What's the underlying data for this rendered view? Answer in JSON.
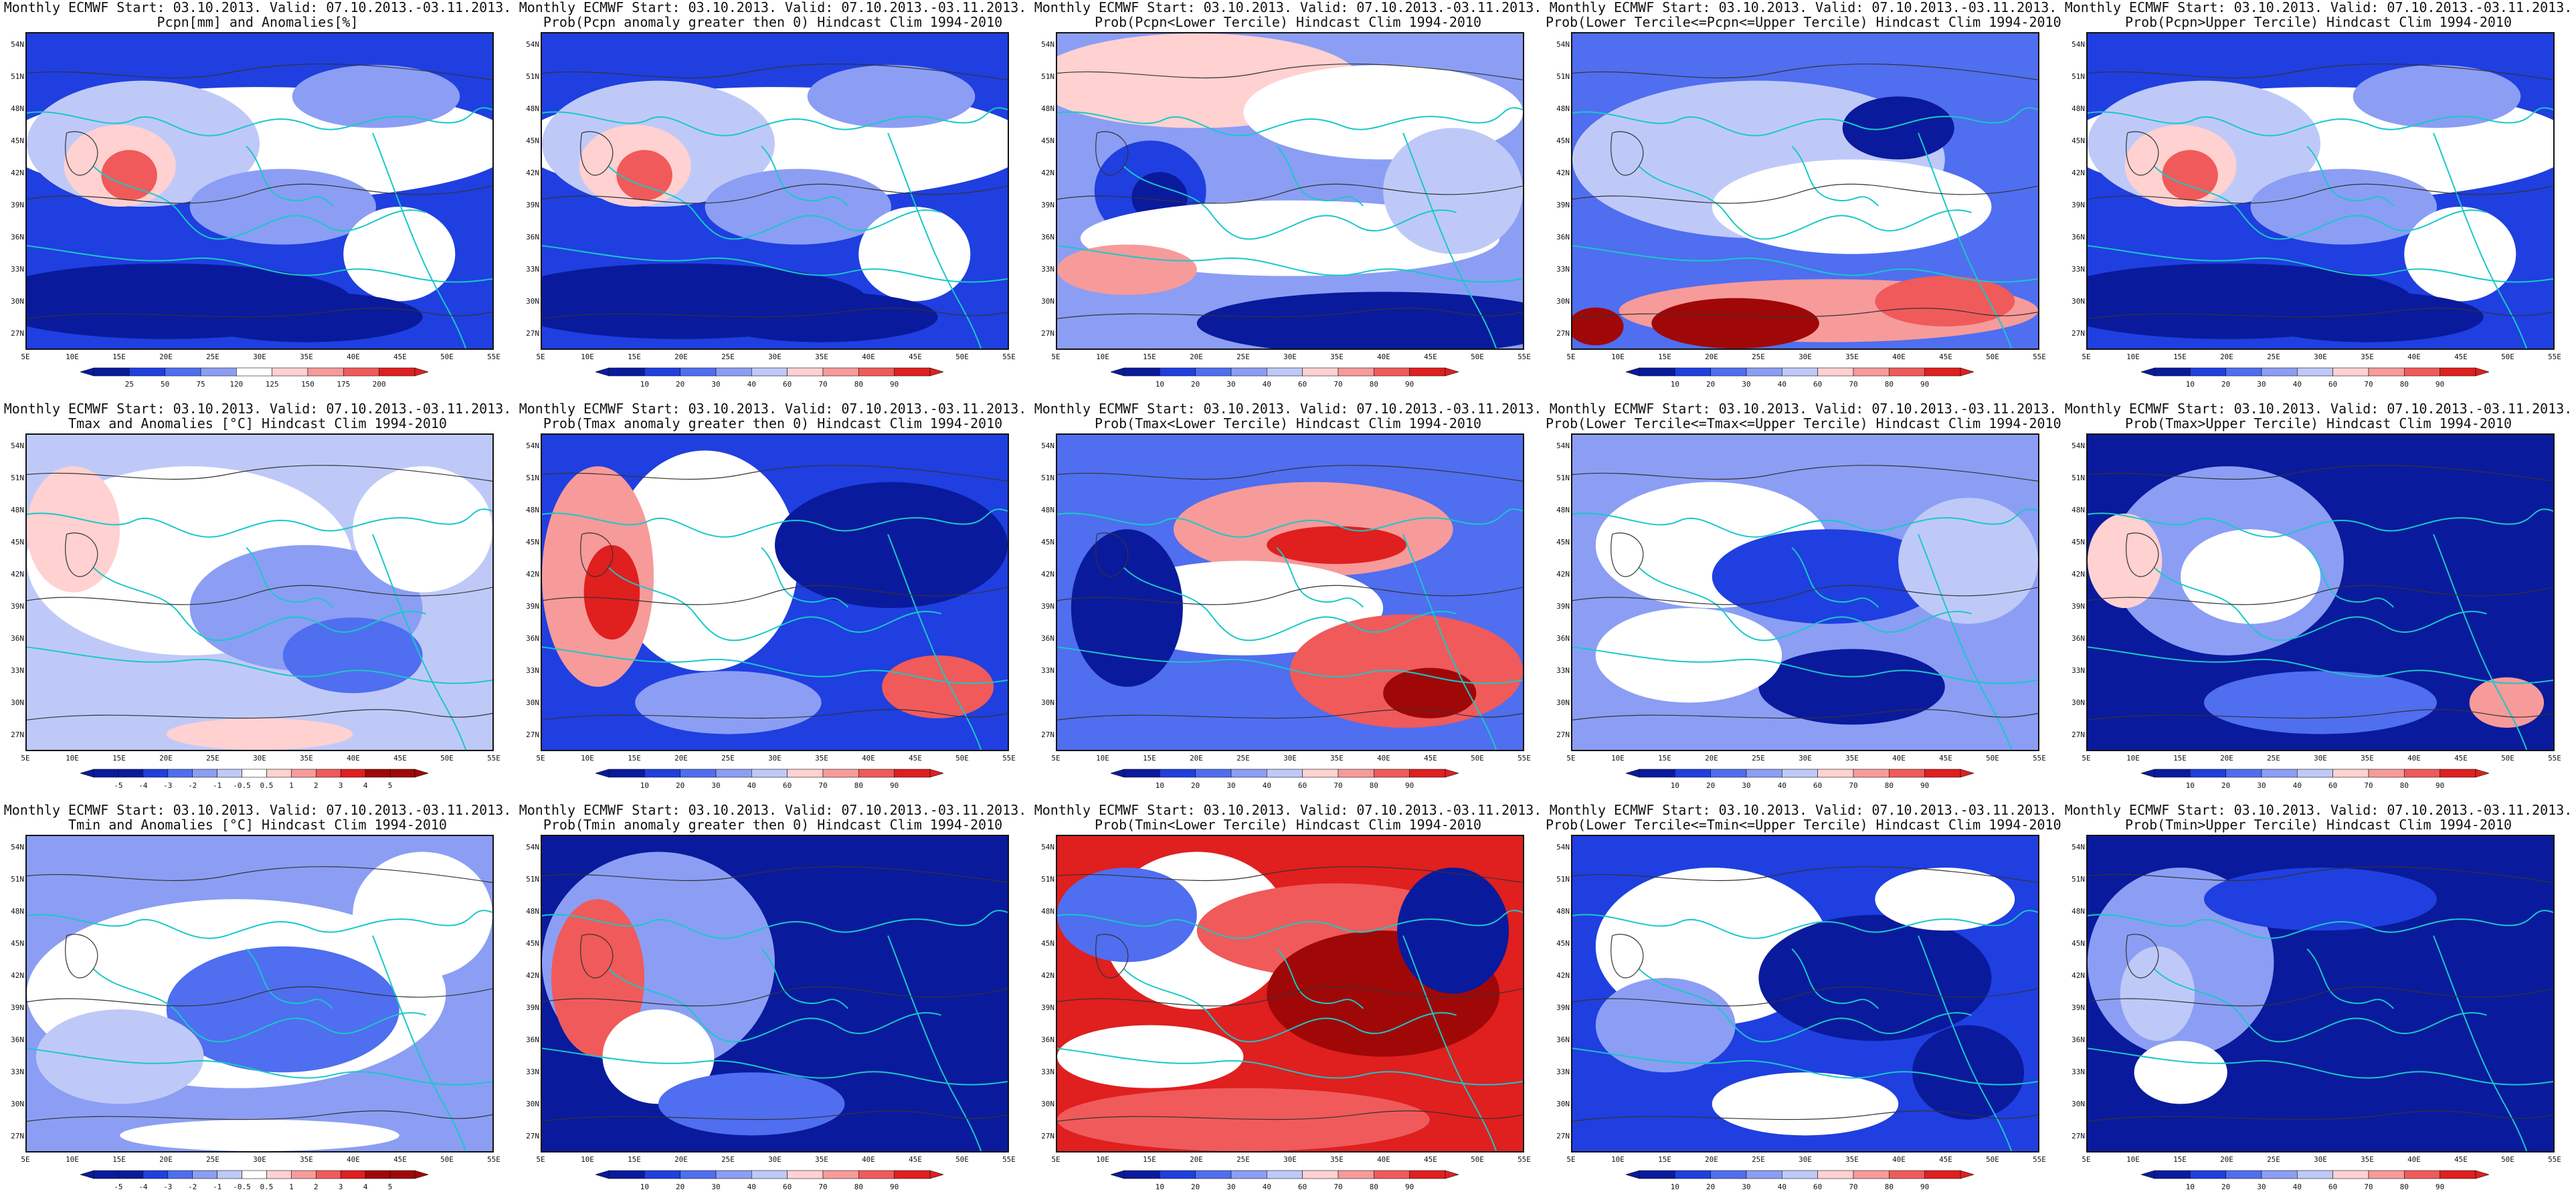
{
  "colors": {
    "blues": [
      "#0a1a9c",
      "#1f3fe0",
      "#4f6ef0",
      "#8b9ef4",
      "#bfc9f8"
    ],
    "reds": [
      "#ffd1d1",
      "#f79a9a",
      "#f05a5a",
      "#e01f1f",
      "#a00808"
    ],
    "white": "#ffffff",
    "coast": "#19c8c8",
    "contour": "#333333"
  },
  "lat_ticks": [
    "54N",
    "51N",
    "48N",
    "45N",
    "42N",
    "39N",
    "36N",
    "33N",
    "30N",
    "27N"
  ],
  "lon_ticks": [
    "5E",
    "10E",
    "15E",
    "20E",
    "25E",
    "30E",
    "35E",
    "40E",
    "45E",
    "50E",
    "55E"
  ],
  "colorbars": {
    "pcpn_anom": [
      "25",
      "50",
      "75",
      "120",
      "125",
      "150",
      "175",
      "200"
    ],
    "prob": [
      "10",
      "20",
      "30",
      "40",
      "60",
      "70",
      "80",
      "90"
    ],
    "temp_anom": [
      "-5",
      "-4",
      "-3",
      "-2",
      "-1",
      "-0.5",
      "0.5",
      "1",
      "2",
      "3",
      "4",
      "5"
    ]
  },
  "panels": [
    {
      "title1": "Monthly ECMWF Start: 03.10.2013. Valid: 07.10.2013.-03.11.2013.",
      "title2": "Pcpn[mm] and Anomalies[%]",
      "field": "pcpn",
      "cbar": "pcpn_anom"
    },
    {
      "title1": "Monthly ECMWF Start: 03.10.2013. Valid: 07.10.2013.-03.11.2013.",
      "title2": "Prob(Pcpn anomaly greater then 0) Hindcast Clim 1994-2010",
      "field": "pcpn",
      "cbar": "prob"
    },
    {
      "title1": "Monthly ECMWF Start: 03.10.2013. Valid: 07.10.2013.-03.11.2013.",
      "title2": "Prob(Pcpn<Lower Tercile) Hindcast Clim 1994-2010",
      "field": "pcpn_low",
      "cbar": "prob"
    },
    {
      "title1": "Monthly ECMWF Start: 03.10.2013. Valid: 07.10.2013.-03.11.2013.",
      "title2": "Prob(Lower Tercile<=Pcpn<=Upper Tercile) Hindcast Clim 1994-2010",
      "field": "pcpn_mid",
      "cbar": "prob"
    },
    {
      "title1": "Monthly ECMWF Start: 03.10.2013. Valid: 07.10.2013.-03.11.2013.",
      "title2": "Prob(Pcpn>Upper Tercile) Hindcast Clim 1994-2010",
      "field": "pcpn",
      "cbar": "prob"
    },
    {
      "title1": "Monthly ECMWF Start: 03.10.2013. Valid: 07.10.2013.-03.11.2013.",
      "title2": "Tmax and Anomalies [°C] Hindcast Clim 1994-2010",
      "field": "tmax_anom",
      "cbar": "temp_anom"
    },
    {
      "title1": "Monthly ECMWF Start: 03.10.2013. Valid: 07.10.2013.-03.11.2013.",
      "title2": "Prob(Tmax anomaly greater then 0) Hindcast Clim 1994-2010",
      "field": "tmax_prob",
      "cbar": "prob"
    },
    {
      "title1": "Monthly ECMWF Start: 03.10.2013. Valid: 07.10.2013.-03.11.2013.",
      "title2": "Prob(Tmax<Lower Tercile) Hindcast Clim 1994-2010",
      "field": "tmax_low",
      "cbar": "prob"
    },
    {
      "title1": "Monthly ECMWF Start: 03.10.2013. Valid: 07.10.2013.-03.11.2013.",
      "title2": "Prob(Lower Tercile<=Tmax<=Upper Tercile) Hindcast Clim 1994-2010",
      "field": "tmax_mid",
      "cbar": "prob"
    },
    {
      "title1": "Monthly ECMWF Start: 03.10.2013. Valid: 07.10.2013.-03.11.2013.",
      "title2": "Prob(Tmax>Upper Tercile) Hindcast Clim 1994-2010",
      "field": "tmax_high",
      "cbar": "prob"
    },
    {
      "title1": "Monthly ECMWF Start: 03.10.2013. Valid: 07.10.2013.-03.11.2013.",
      "title2": "Tmin and Anomalies [°C] Hindcast Clim 1994-2010",
      "field": "tmin_anom",
      "cbar": "temp_anom"
    },
    {
      "title1": "Monthly ECMWF Start: 03.10.2013. Valid: 07.10.2013.-03.11.2013.",
      "title2": "Prob(Tmin anomaly greater then 0) Hindcast Clim 1994-2010",
      "field": "tmin_prob",
      "cbar": "prob"
    },
    {
      "title1": "Monthly ECMWF Start: 03.10.2013. Valid: 07.10.2013.-03.11.2013.",
      "title2": "Prob(Tmin<Lower Tercile) Hindcast Clim 1994-2010",
      "field": "tmin_low",
      "cbar": "prob"
    },
    {
      "title1": "Monthly ECMWF Start: 03.10.2013. Valid: 07.10.2013.-03.11.2013.",
      "title2": "Prob(Lower Tercile<=Tmin<=Upper Tercile) Hindcast Clim 1994-2010",
      "field": "tmin_mid",
      "cbar": "prob"
    },
    {
      "title1": "Monthly ECMWF Start: 03.10.2013. Valid: 07.10.2013.-03.11.2013.",
      "title2": "Prob(Tmin>Upper Tercile) Hindcast Clim 1994-2010",
      "field": "tmin_high",
      "cbar": "prob"
    }
  ]
}
